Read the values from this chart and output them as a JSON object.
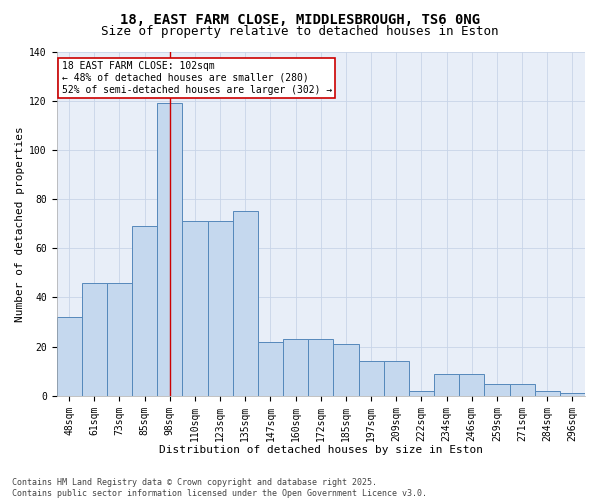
{
  "title_line1": "18, EAST FARM CLOSE, MIDDLESBROUGH, TS6 0NG",
  "title_line2": "Size of property relative to detached houses in Eston",
  "xlabel": "Distribution of detached houses by size in Eston",
  "ylabel": "Number of detached properties",
  "categories": [
    "48sqm",
    "61sqm",
    "73sqm",
    "85sqm",
    "98sqm",
    "110sqm",
    "123sqm",
    "135sqm",
    "147sqm",
    "160sqm",
    "172sqm",
    "185sqm",
    "197sqm",
    "209sqm",
    "222sqm",
    "234sqm",
    "246sqm",
    "259sqm",
    "271sqm",
    "284sqm",
    "296sqm"
  ],
  "values": [
    32,
    46,
    46,
    69,
    119,
    71,
    71,
    75,
    22,
    23,
    23,
    21,
    14,
    14,
    2,
    9,
    9,
    5,
    5,
    2,
    1
  ],
  "bar_color": "#c5d8ee",
  "bar_edge_color": "#5588bb",
  "vline_x": 4,
  "vline_color": "#cc0000",
  "annotation_text": "18 EAST FARM CLOSE: 102sqm\n← 48% of detached houses are smaller (280)\n52% of semi-detached houses are larger (302) →",
  "annotation_box_color": "white",
  "annotation_box_edge": "#cc0000",
  "grid_color": "#c8d4e8",
  "background_color": "#e8eef8",
  "ylim": [
    0,
    140
  ],
  "yticks": [
    0,
    20,
    40,
    60,
    80,
    100,
    120,
    140
  ],
  "footer_text": "Contains HM Land Registry data © Crown copyright and database right 2025.\nContains public sector information licensed under the Open Government Licence v3.0.",
  "title_fontsize": 10,
  "subtitle_fontsize": 9,
  "axis_label_fontsize": 8,
  "tick_fontsize": 7,
  "annotation_fontsize": 7,
  "footer_fontsize": 6
}
